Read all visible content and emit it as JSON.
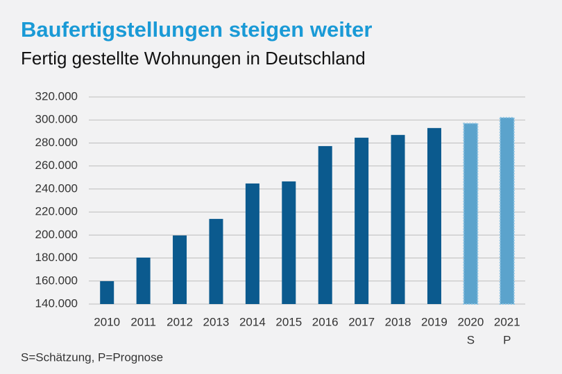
{
  "chart_data": {
    "type": "bar",
    "title": "Baufertigstellungen steigen weiter",
    "subtitle": "Fertig gestellte Wohnungen in Deutschland",
    "categories": [
      "2010",
      "2011",
      "2012",
      "2013",
      "2014",
      "2015",
      "2016",
      "2017",
      "2018",
      "2019",
      "2020",
      "2021"
    ],
    "category_notes": [
      null,
      null,
      null,
      null,
      null,
      null,
      null,
      null,
      null,
      null,
      "S",
      "P"
    ],
    "values": [
      159900,
      180400,
      199600,
      214000,
      244800,
      246600,
      277300,
      284600,
      287000,
      293000,
      297000,
      302000
    ],
    "colors": [
      "#0b5a8e",
      "#0b5a8e",
      "#0b5a8e",
      "#0b5a8e",
      "#0b5a8e",
      "#0b5a8e",
      "#0b5a8e",
      "#0b5a8e",
      "#0b5a8e",
      "#0b5a8e",
      "#5ba3cc",
      "#5ba3cc"
    ],
    "ylim": [
      140000,
      320000
    ],
    "yticks": [
      {
        "value": 140000,
        "label": "140.000"
      },
      {
        "value": 160000,
        "label": "160.000"
      },
      {
        "value": 180000,
        "label": "180.000"
      },
      {
        "value": 200000,
        "label": "200.000"
      },
      {
        "value": 220000,
        "label": "220.000"
      },
      {
        "value": 240000,
        "label": "240.000"
      },
      {
        "value": 260000,
        "label": "260.000"
      },
      {
        "value": 280000,
        "label": "280.000"
      },
      {
        "value": 300000,
        "label": "300.000"
      },
      {
        "value": 320000,
        "label": "320.000"
      }
    ],
    "grid": true,
    "footnote": "S=Schätzung, P=Prognose"
  }
}
